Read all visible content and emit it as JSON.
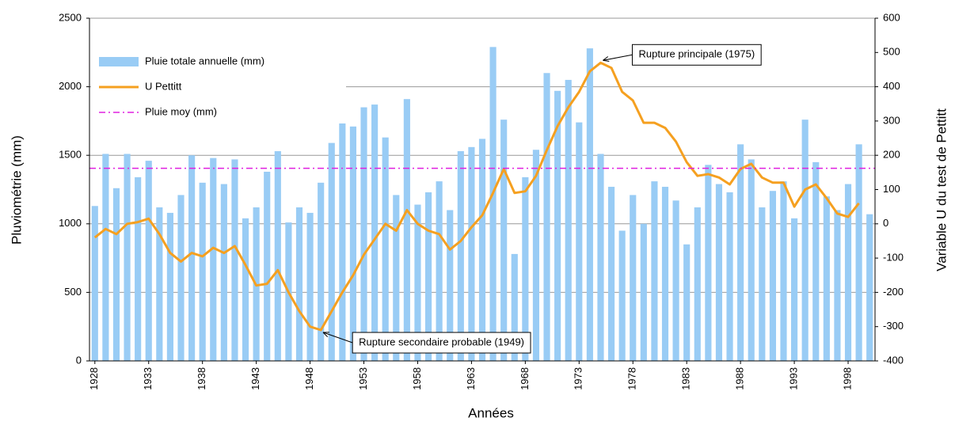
{
  "chart_data": {
    "type": "bar-line",
    "x_label": "Années",
    "y_label": "Pluviométrie (mm)",
    "y2_label": "Variable U du test de Pettitt",
    "x": [
      1928,
      1929,
      1930,
      1931,
      1932,
      1933,
      1934,
      1935,
      1936,
      1937,
      1938,
      1939,
      1940,
      1941,
      1942,
      1943,
      1944,
      1945,
      1946,
      1947,
      1948,
      1949,
      1950,
      1951,
      1952,
      1953,
      1954,
      1955,
      1956,
      1957,
      1958,
      1959,
      1960,
      1961,
      1962,
      1963,
      1964,
      1965,
      1966,
      1967,
      1968,
      1969,
      1970,
      1971,
      1972,
      1973,
      1974,
      1975,
      1976,
      1977,
      1978,
      1979,
      1980,
      1981,
      1982,
      1983,
      1984,
      1985,
      1986,
      1987,
      1988,
      1989,
      1990,
      1991,
      1992,
      1993,
      1994,
      1995,
      1996,
      1997,
      1998,
      1999,
      2000
    ],
    "xlim": [
      1927.5,
      2000.5
    ],
    "xticks": [
      1928,
      1933,
      1938,
      1943,
      1948,
      1953,
      1958,
      1963,
      1968,
      1973,
      1978,
      1983,
      1988,
      1993,
      1998
    ],
    "ylim": [
      0,
      2500
    ],
    "yticks": [
      0,
      500,
      1000,
      1500,
      2000,
      2500
    ],
    "y2lim": [
      -400,
      600
    ],
    "y2ticks": [
      -400,
      -300,
      -200,
      -100,
      0,
      100,
      200,
      300,
      400,
      500,
      600
    ],
    "grid": true,
    "legend": "upper left",
    "series": [
      {
        "name": "Pluie totale annuelle (mm)",
        "type": "bar",
        "color": "#99ccf5",
        "values": [
          1130,
          1510,
          1260,
          1510,
          1340,
          1460,
          1120,
          1080,
          1210,
          1500,
          1300,
          1480,
          1290,
          1470,
          1040,
          1120,
          1380,
          1530,
          1010,
          1120,
          1080,
          1300,
          1590,
          1790,
          1710,
          1850,
          1870,
          1630,
          1210,
          1910,
          1140,
          1230,
          1310,
          1100,
          1530,
          1560,
          1620,
          2290,
          1760,
          780,
          1340,
          1540,
          2100,
          1970,
          2050,
          1740,
          2280,
          1510,
          1270,
          950,
          1210,
          1000,
          1310,
          1270,
          1170,
          850,
          1120,
          1430,
          1290,
          1230,
          1580,
          1470,
          1120,
          1240,
          1310,
          1040,
          1760,
          1450,
          1200,
          1100,
          1290,
          1580,
          1070
        ]
      },
      {
        "name": "U Pettitt",
        "type": "line",
        "axis": "y2",
        "color": "#f5a020",
        "values": [
          -40,
          -15,
          -30,
          0,
          5,
          15,
          -30,
          -85,
          -110,
          -85,
          -95,
          -70,
          -85,
          -65,
          -120,
          -180,
          -175,
          -135,
          -200,
          -255,
          -300,
          -310,
          -255,
          -200,
          -150,
          -90,
          -45,
          0,
          -20,
          40,
          0,
          -20,
          -30,
          -75,
          -50,
          -10,
          25,
          90,
          160,
          90,
          95,
          140,
          215,
          285,
          340,
          385,
          445,
          470,
          455,
          385,
          360,
          295,
          295,
          280,
          240,
          180,
          140,
          145,
          135,
          115,
          160,
          175,
          135,
          120,
          120,
          50,
          100,
          115,
          75,
          30,
          20,
          60,
          null
        ]
      },
      {
        "name": "Pluie moy (mm)",
        "type": "hline",
        "color": "#e020e0",
        "value": 1405
      }
    ],
    "annotations": [
      {
        "text": "Rupture principale (1975)",
        "x": 1975,
        "y": 470,
        "axis": "y2"
      },
      {
        "text": "Rupture secondaire probable (1949)",
        "x": 1949,
        "y": -310,
        "axis": "y2"
      }
    ]
  }
}
